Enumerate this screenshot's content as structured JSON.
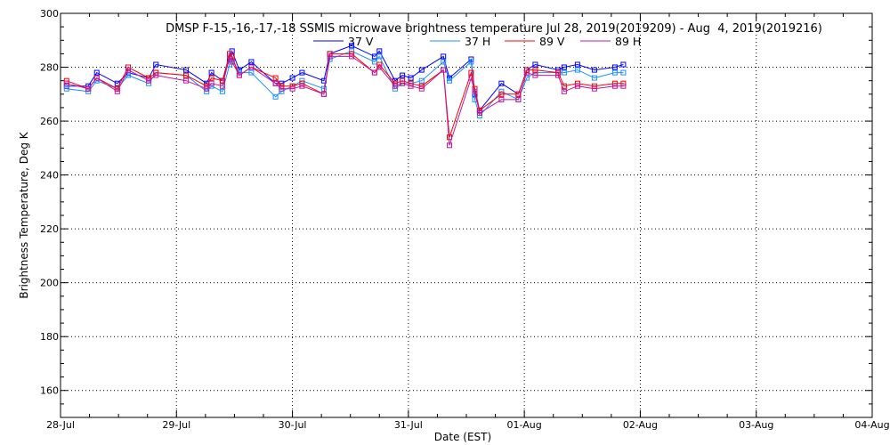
{
  "chart_data": {
    "type": "line",
    "title": "DMSP F-15,-16,-17,-18 SSMIS microwave brightness temperature Jul 28, 2019(2019209) - Aug  4, 2019(2019216)",
    "xlabel": "Date (EST)",
    "ylabel": "Brightness Temperature, Deg K",
    "x_range": [
      "2019-07-28T00:00",
      "2019-08-04T00:00"
    ],
    "ylim": [
      150,
      300
    ],
    "xticks": [
      {
        "date": "2019-07-28T00:00",
        "label": "28-Jul"
      },
      {
        "date": "2019-07-29T00:00",
        "label": "29-Jul"
      },
      {
        "date": "2019-07-30T00:00",
        "label": "30-Jul"
      },
      {
        "date": "2019-07-31T00:00",
        "label": "31-Jul"
      },
      {
        "date": "2019-08-01T00:00",
        "label": "01-Aug"
      },
      {
        "date": "2019-08-02T00:00",
        "label": "02-Aug"
      },
      {
        "date": "2019-08-03T00:00",
        "label": "03-Aug"
      },
      {
        "date": "2019-08-04T00:00",
        "label": "04-Aug"
      }
    ],
    "yticks": [
      160,
      180,
      200,
      220,
      240,
      260,
      280,
      300
    ],
    "grid": "dotted",
    "legend_position": "top-center",
    "x": [
      "2019-07-28T01:15",
      "2019-07-28T05:45",
      "2019-07-28T07:30",
      "2019-07-28T11:45",
      "2019-07-28T14:00",
      "2019-07-28T18:15",
      "2019-07-28T19:45",
      "2019-07-29T02:00",
      "2019-07-29T06:15",
      "2019-07-29T07:15",
      "2019-07-29T09:30",
      "2019-07-29T11:00",
      "2019-07-29T11:30",
      "2019-07-29T13:00",
      "2019-07-29T15:30",
      "2019-07-29T20:30",
      "2019-07-29T21:45",
      "2019-07-30T00:00",
      "2019-07-30T02:00",
      "2019-07-30T06:30",
      "2019-07-30T07:45",
      "2019-07-30T12:15",
      "2019-07-30T17:00",
      "2019-07-30T18:00",
      "2019-07-30T21:15",
      "2019-07-30T22:45",
      "2019-07-31T00:30",
      "2019-07-31T02:45",
      "2019-07-31T07:15",
      "2019-07-31T08:30",
      "2019-07-31T13:00",
      "2019-07-31T13:45",
      "2019-07-31T14:45",
      "2019-07-31T19:15",
      "2019-07-31T22:45",
      "2019-08-01T00:30",
      "2019-08-01T02:15",
      "2019-08-01T07:00",
      "2019-08-01T08:15",
      "2019-08-01T11:00",
      "2019-08-01T14:30",
      "2019-08-01T18:45",
      "2019-08-01T20:30"
    ],
    "series": [
      {
        "name": "37 V",
        "color": "#0000ff",
        "values": [
          273,
          273,
          278,
          274,
          278,
          276,
          281,
          279,
          274,
          278,
          275,
          283,
          286,
          279,
          282,
          274,
          274,
          276,
          278,
          275,
          285,
          288,
          284,
          286,
          275,
          277,
          276,
          279,
          284,
          276,
          283,
          270,
          264,
          274,
          270,
          279,
          281,
          279,
          280,
          281,
          279,
          280,
          281
        ]
      },
      {
        "name": "37 H",
        "color": "#1e90ff",
        "values": [
          272,
          271,
          275,
          272,
          277,
          274,
          278,
          277,
          271,
          273,
          271,
          281,
          283,
          278,
          278,
          269,
          271,
          273,
          275,
          272,
          283,
          286,
          282,
          284,
          272,
          274,
          274,
          275,
          282,
          275,
          282,
          268,
          262,
          271,
          268,
          276,
          278,
          278,
          278,
          279,
          276,
          278,
          278
        ]
      },
      {
        "name": "89 V",
        "color": "#ff0000",
        "values": [
          275,
          272,
          276,
          272,
          280,
          276,
          278,
          277,
          273,
          276,
          275,
          285,
          284,
          277,
          280,
          276,
          273,
          273,
          274,
          270,
          285,
          285,
          278,
          281,
          274,
          275,
          274,
          273,
          279,
          254,
          278,
          272,
          264,
          270,
          270,
          279,
          279,
          278,
          273,
          274,
          273,
          274,
          274
        ]
      },
      {
        "name": "89 H",
        "color": "#c0189c",
        "values": [
          274,
          272,
          276,
          271,
          279,
          275,
          277,
          275,
          272,
          274,
          273,
          284,
          282,
          277,
          280,
          274,
          272,
          272,
          273,
          270,
          284,
          284,
          278,
          280,
          273,
          274,
          273,
          272,
          279,
          251,
          276,
          271,
          263,
          268,
          268,
          278,
          277,
          277,
          271,
          273,
          272,
          273,
          273
        ]
      }
    ]
  }
}
